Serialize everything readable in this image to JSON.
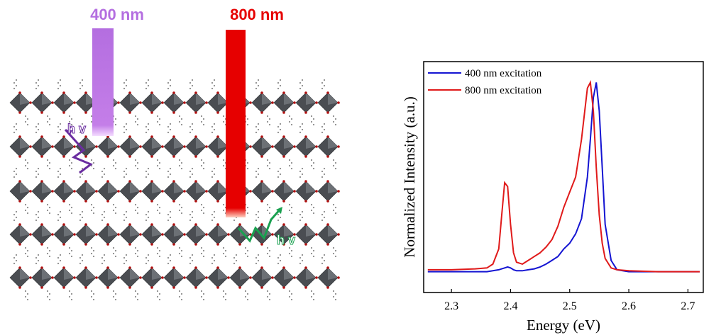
{
  "chart_data": {
    "type": "line",
    "xlabel": "Energy (eV)",
    "ylabel": "Normalized Intensity (a.u.)",
    "x": [
      2.26,
      2.3,
      2.34,
      2.36,
      2.37,
      2.38,
      2.385,
      2.39,
      2.395,
      2.4,
      2.405,
      2.41,
      2.42,
      2.43,
      2.44,
      2.45,
      2.46,
      2.47,
      2.48,
      2.49,
      2.5,
      2.51,
      2.52,
      2.53,
      2.535,
      2.54,
      2.545,
      2.55,
      2.555,
      2.56,
      2.57,
      2.58,
      2.6,
      2.65,
      2.72
    ],
    "series": [
      {
        "name": "400 nm excitation",
        "color": "#1414d2",
        "values": [
          0,
          0,
          0,
          0,
          0.005,
          0.01,
          0.015,
          0.02,
          0.025,
          0.02,
          0.01,
          0.005,
          0.005,
          0.01,
          0.015,
          0.025,
          0.04,
          0.06,
          0.08,
          0.12,
          0.15,
          0.2,
          0.28,
          0.5,
          0.7,
          0.92,
          1.0,
          0.85,
          0.55,
          0.25,
          0.06,
          0.01,
          0,
          0,
          0
        ]
      },
      {
        "name": "800 nm excitation",
        "color": "#e01a1a",
        "values": [
          0.01,
          0.01,
          0.015,
          0.02,
          0.04,
          0.12,
          0.3,
          0.47,
          0.45,
          0.25,
          0.1,
          0.05,
          0.04,
          0.06,
          0.08,
          0.1,
          0.13,
          0.17,
          0.24,
          0.34,
          0.42,
          0.5,
          0.7,
          0.97,
          1.0,
          0.85,
          0.55,
          0.3,
          0.15,
          0.07,
          0.02,
          0.01,
          0.005,
          0,
          0
        ]
      }
    ],
    "xlim": [
      2.253,
      2.726
    ],
    "ylim": [
      -0.11,
      1.11
    ],
    "xticks": [
      2.3,
      2.4,
      2.5,
      2.6,
      2.7
    ],
    "legend": "upper-left"
  },
  "schematic": {
    "beams": [
      {
        "label": "400 nm",
        "color": "#b46ee0"
      },
      {
        "label": "800 nm",
        "color": "#e60000"
      }
    ],
    "emission_labels": [
      "h v",
      "h v"
    ]
  }
}
